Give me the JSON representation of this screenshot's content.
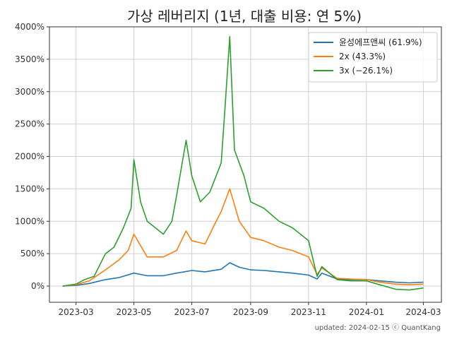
{
  "chart_data": {
    "type": "line",
    "title": "가상 레버리지 (1년, 대출 비용: 연 5%)",
    "xlabel": "",
    "ylabel": "",
    "x_ticks": [
      "2023-03",
      "2023-05",
      "2023-07",
      "2023-09",
      "2023-11",
      "2024-01",
      "2024-03"
    ],
    "y_ticks": [
      "0%",
      "500%",
      "1000%",
      "1500%",
      "2000%",
      "2500%",
      "3000%",
      "3500%",
      "4000%"
    ],
    "xlim": [
      "2023-02-01",
      "2024-03-20"
    ],
    "ylim": [
      -250,
      4000
    ],
    "grid": true,
    "legend_position": "top-right",
    "footer": "updated: 2024-02-15 ⓒ QuantKang",
    "series": [
      {
        "name": "윤성에프앤씨 (61.9%)",
        "color": "#1f77b4",
        "points": [
          [
            "2023-02-15",
            0
          ],
          [
            "2023-03-01",
            10
          ],
          [
            "2023-03-15",
            40
          ],
          [
            "2023-04-01",
            100
          ],
          [
            "2023-04-15",
            130
          ],
          [
            "2023-05-01",
            200
          ],
          [
            "2023-05-15",
            160
          ],
          [
            "2023-06-01",
            160
          ],
          [
            "2023-06-15",
            200
          ],
          [
            "2023-07-01",
            240
          ],
          [
            "2023-07-15",
            220
          ],
          [
            "2023-08-01",
            260
          ],
          [
            "2023-08-10",
            360
          ],
          [
            "2023-08-20",
            290
          ],
          [
            "2023-09-01",
            250
          ],
          [
            "2023-09-15",
            240
          ],
          [
            "2023-10-01",
            220
          ],
          [
            "2023-10-15",
            200
          ],
          [
            "2023-11-01",
            170
          ],
          [
            "2023-11-10",
            110
          ],
          [
            "2023-11-15",
            200
          ],
          [
            "2023-12-01",
            110
          ],
          [
            "2023-12-15",
            100
          ],
          [
            "2024-01-01",
            100
          ],
          [
            "2024-01-15",
            80
          ],
          [
            "2024-02-01",
            60
          ],
          [
            "2024-02-15",
            50
          ],
          [
            "2024-03-01",
            60
          ]
        ]
      },
      {
        "name": "2x (43.3%)",
        "color": "#ff7f0e",
        "points": [
          [
            "2023-02-15",
            0
          ],
          [
            "2023-03-01",
            20
          ],
          [
            "2023-03-15",
            80
          ],
          [
            "2023-04-01",
            250
          ],
          [
            "2023-04-15",
            400
          ],
          [
            "2023-04-25",
            550
          ],
          [
            "2023-05-01",
            800
          ],
          [
            "2023-05-15",
            450
          ],
          [
            "2023-06-01",
            450
          ],
          [
            "2023-06-15",
            550
          ],
          [
            "2023-06-25",
            850
          ],
          [
            "2023-07-01",
            700
          ],
          [
            "2023-07-15",
            650
          ],
          [
            "2023-07-25",
            950
          ],
          [
            "2023-08-01",
            1150
          ],
          [
            "2023-08-10",
            1500
          ],
          [
            "2023-08-20",
            1000
          ],
          [
            "2023-09-01",
            750
          ],
          [
            "2023-09-15",
            700
          ],
          [
            "2023-10-01",
            600
          ],
          [
            "2023-10-15",
            550
          ],
          [
            "2023-11-01",
            450
          ],
          [
            "2023-11-10",
            180
          ],
          [
            "2023-11-15",
            280
          ],
          [
            "2023-12-01",
            120
          ],
          [
            "2023-12-15",
            110
          ],
          [
            "2024-01-01",
            100
          ],
          [
            "2024-01-15",
            60
          ],
          [
            "2024-02-01",
            30
          ],
          [
            "2024-02-15",
            20
          ],
          [
            "2024-03-01",
            30
          ]
        ]
      },
      {
        "name": "3x (−26.1%)",
        "color": "#2ca02c",
        "points": [
          [
            "2023-02-15",
            0
          ],
          [
            "2023-03-01",
            30
          ],
          [
            "2023-03-10",
            100
          ],
          [
            "2023-03-20",
            150
          ],
          [
            "2023-04-01",
            500
          ],
          [
            "2023-04-10",
            600
          ],
          [
            "2023-04-20",
            900
          ],
          [
            "2023-04-28",
            1200
          ],
          [
            "2023-05-01",
            1950
          ],
          [
            "2023-05-08",
            1300
          ],
          [
            "2023-05-15",
            1000
          ],
          [
            "2023-06-01",
            800
          ],
          [
            "2023-06-10",
            1000
          ],
          [
            "2023-06-15",
            1400
          ],
          [
            "2023-06-25",
            2250
          ],
          [
            "2023-07-01",
            1700
          ],
          [
            "2023-07-10",
            1300
          ],
          [
            "2023-07-20",
            1450
          ],
          [
            "2023-08-01",
            1900
          ],
          [
            "2023-08-05",
            2750
          ],
          [
            "2023-08-10",
            3850
          ],
          [
            "2023-08-15",
            2100
          ],
          [
            "2023-08-25",
            1700
          ],
          [
            "2023-09-01",
            1300
          ],
          [
            "2023-09-15",
            1200
          ],
          [
            "2023-10-01",
            1000
          ],
          [
            "2023-10-15",
            900
          ],
          [
            "2023-11-01",
            700
          ],
          [
            "2023-11-10",
            150
          ],
          [
            "2023-11-15",
            300
          ],
          [
            "2023-12-01",
            100
          ],
          [
            "2023-12-15",
            80
          ],
          [
            "2024-01-01",
            80
          ],
          [
            "2024-01-15",
            20
          ],
          [
            "2024-02-01",
            -50
          ],
          [
            "2024-02-15",
            -60
          ],
          [
            "2024-03-01",
            -30
          ]
        ]
      }
    ]
  }
}
